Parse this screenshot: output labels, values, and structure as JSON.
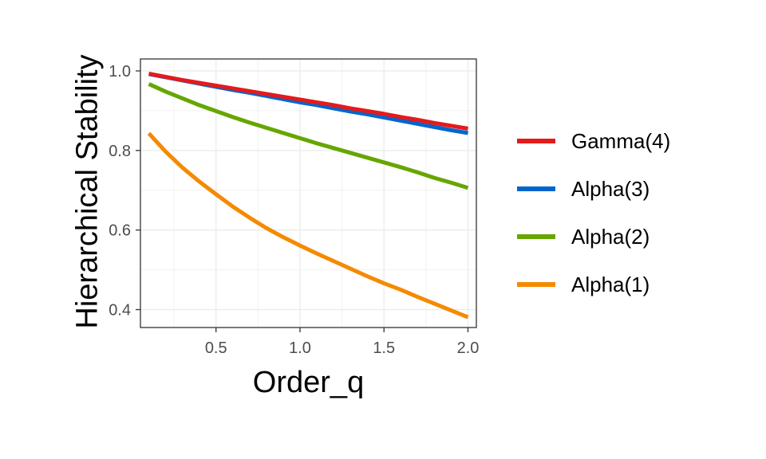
{
  "chart_data": {
    "type": "line",
    "title": "",
    "xlabel": "Order_q",
    "ylabel": "Hierarchical Stability",
    "xlim": [
      0.05,
      2.05
    ],
    "ylim": [
      0.355,
      1.03
    ],
    "xticks": [
      0.5,
      1.0,
      1.5,
      2.0
    ],
    "xtick_labels": [
      "0.5",
      "1.0",
      "1.5",
      "2.0"
    ],
    "yticks": [
      0.4,
      0.6,
      0.8,
      1.0
    ],
    "ytick_labels": [
      "0.4",
      "0.6",
      "0.8",
      "1.0"
    ],
    "grid": true,
    "legend_position": "right",
    "x": [
      0.1,
      0.2,
      0.3,
      0.4,
      0.5,
      0.6,
      0.7,
      0.8,
      0.9,
      1.0,
      1.1,
      1.2,
      1.3,
      1.4,
      1.5,
      1.6,
      1.7,
      1.8,
      1.9,
      2.0
    ],
    "series": [
      {
        "name": "Gamma(4)",
        "color": "#e41a1c",
        "values": [
          0.993,
          0.985,
          0.977,
          0.97,
          0.963,
          0.956,
          0.949,
          0.942,
          0.935,
          0.928,
          0.921,
          0.914,
          0.906,
          0.899,
          0.892,
          0.884,
          0.877,
          0.869,
          0.862,
          0.855
        ]
      },
      {
        "name": "Alpha(3)",
        "color": "#0066cc",
        "values": [
          0.992,
          0.984,
          0.976,
          0.968,
          0.96,
          0.952,
          0.945,
          0.937,
          0.929,
          0.921,
          0.914,
          0.906,
          0.898,
          0.891,
          0.883,
          0.875,
          0.867,
          0.859,
          0.851,
          0.844
        ]
      },
      {
        "name": "Alpha(2)",
        "color": "#66a600",
        "values": [
          0.967,
          0.948,
          0.931,
          0.914,
          0.899,
          0.884,
          0.87,
          0.857,
          0.844,
          0.831,
          0.818,
          0.806,
          0.794,
          0.782,
          0.77,
          0.758,
          0.745,
          0.731,
          0.719,
          0.706
        ]
      },
      {
        "name": "Alpha(1)",
        "color": "#f58a00",
        "values": [
          0.843,
          0.797,
          0.757,
          0.722,
          0.69,
          0.659,
          0.631,
          0.605,
          0.582,
          0.561,
          0.541,
          0.522,
          0.503,
          0.484,
          0.466,
          0.45,
          0.432,
          0.415,
          0.398,
          0.381
        ]
      }
    ]
  }
}
